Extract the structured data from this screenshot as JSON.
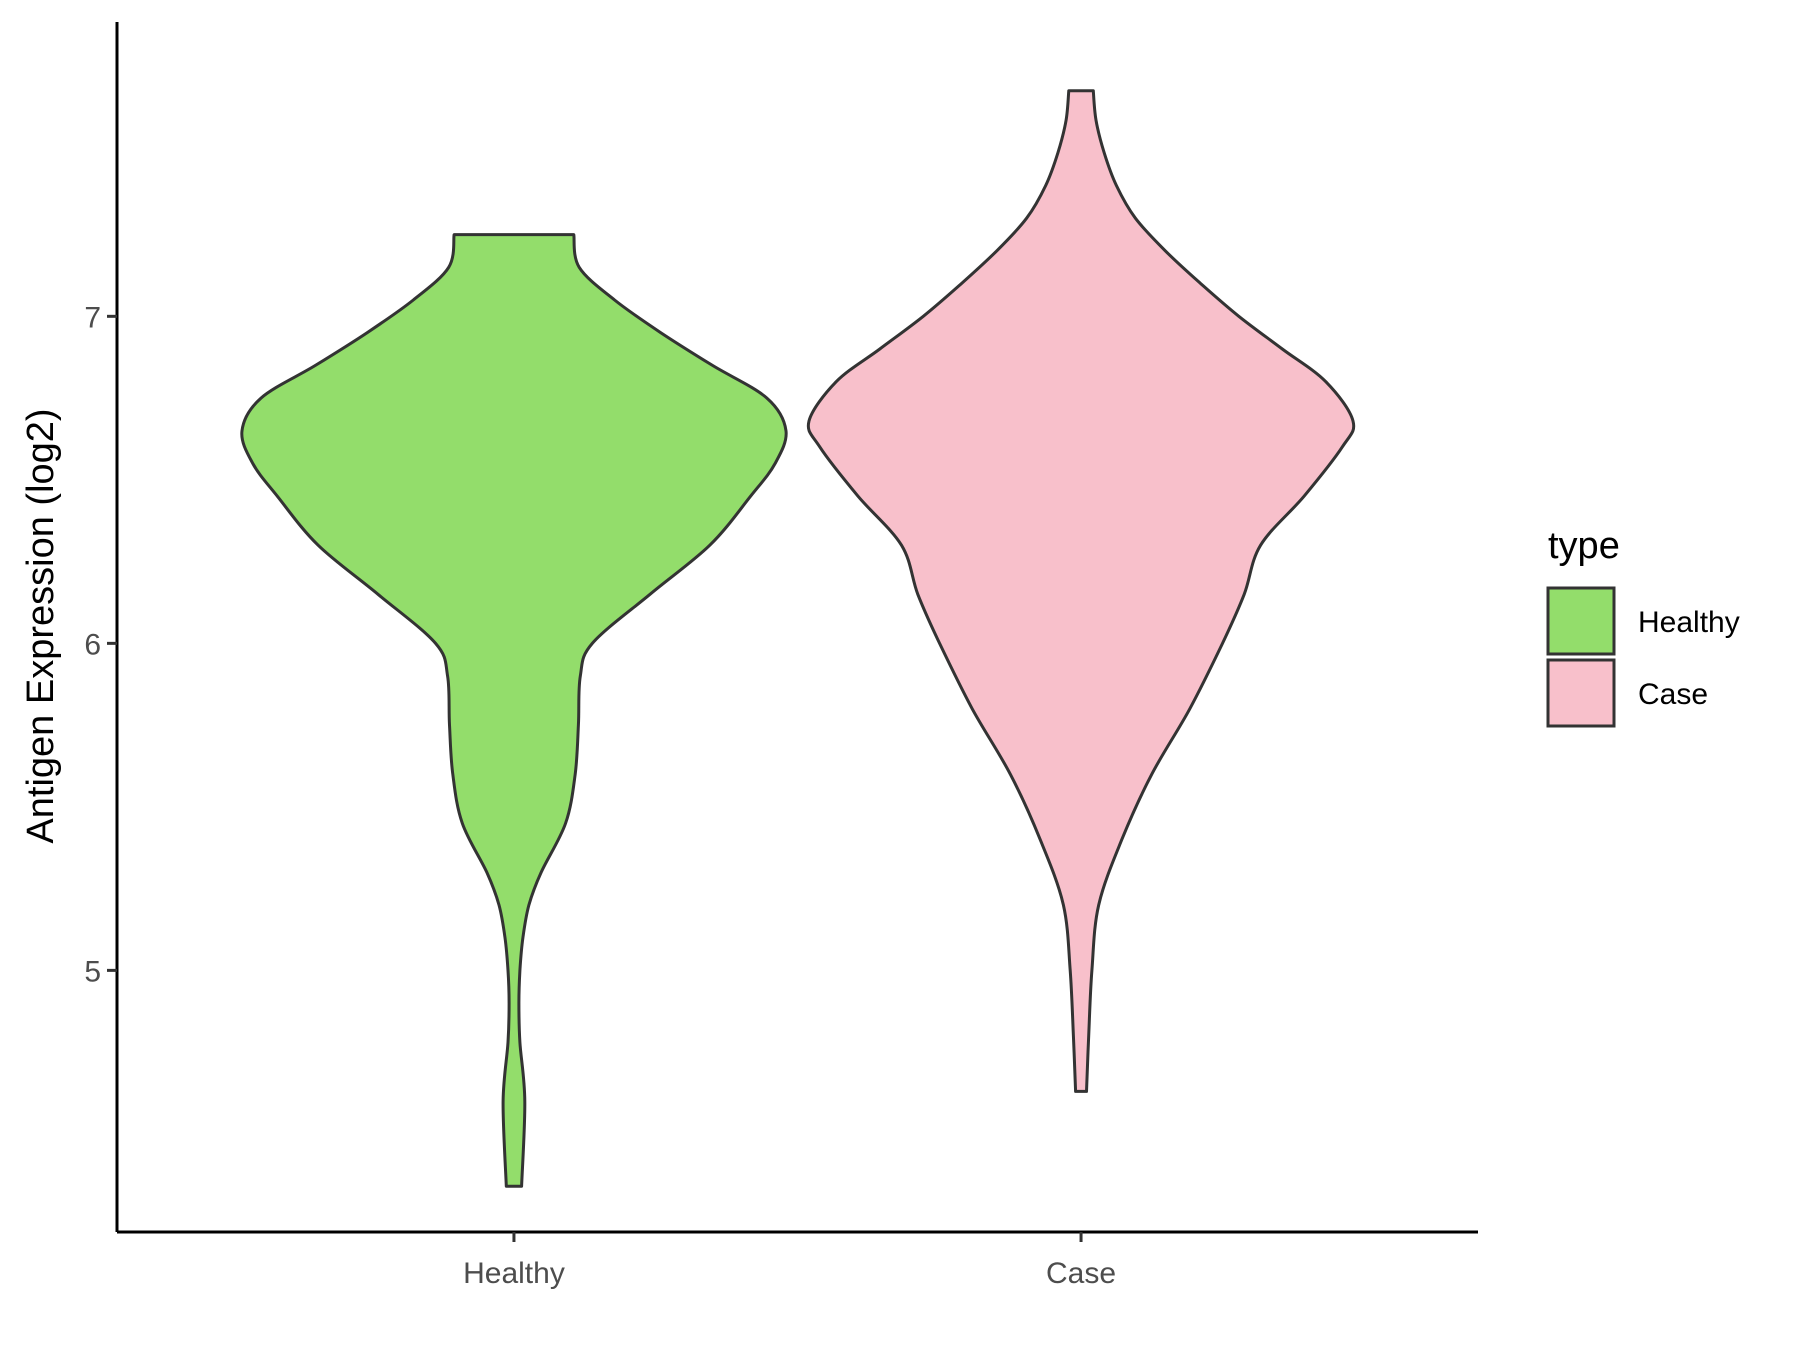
{
  "chart_data": {
    "type": "violin",
    "title": "",
    "xlabel": "",
    "ylabel": "Antigen Expression (log2)",
    "ylim": [
      4.2,
      7.9
    ],
    "yticks": [
      5,
      6,
      7
    ],
    "categories": [
      "Healthy",
      "Case"
    ],
    "legend": {
      "title": "type",
      "position": "right",
      "entries": [
        "Healthy",
        "Case"
      ]
    },
    "series": [
      {
        "name": "Healthy",
        "color": "#93DD6B",
        "min": 4.34,
        "max": 7.25,
        "density_profile": [
          [
            4.34,
            0.028
          ],
          [
            4.6,
            0.04
          ],
          [
            4.78,
            0.022
          ],
          [
            4.9,
            0.018
          ],
          [
            5.0,
            0.022
          ],
          [
            5.1,
            0.033
          ],
          [
            5.2,
            0.055
          ],
          [
            5.3,
            0.1
          ],
          [
            5.45,
            0.19
          ],
          [
            5.6,
            0.225
          ],
          [
            5.75,
            0.237
          ],
          [
            5.9,
            0.244
          ],
          [
            6.0,
            0.288
          ],
          [
            6.15,
            0.5
          ],
          [
            6.3,
            0.72
          ],
          [
            6.45,
            0.87
          ],
          [
            6.55,
            0.96
          ],
          [
            6.65,
            1.0
          ],
          [
            6.75,
            0.93
          ],
          [
            6.85,
            0.73
          ],
          [
            6.95,
            0.54
          ],
          [
            7.05,
            0.37
          ],
          [
            7.15,
            0.24
          ],
          [
            7.25,
            0.22
          ]
        ]
      },
      {
        "name": "Case",
        "color": "#F8C0CB",
        "min": 4.63,
        "max": 7.69,
        "density_profile": [
          [
            4.63,
            0.02
          ],
          [
            4.8,
            0.028
          ],
          [
            5.0,
            0.04
          ],
          [
            5.2,
            0.065
          ],
          [
            5.4,
            0.15
          ],
          [
            5.6,
            0.26
          ],
          [
            5.8,
            0.4
          ],
          [
            6.0,
            0.52
          ],
          [
            6.15,
            0.6
          ],
          [
            6.3,
            0.66
          ],
          [
            6.45,
            0.82
          ],
          [
            6.6,
            0.96
          ],
          [
            6.68,
            1.0
          ],
          [
            6.8,
            0.9
          ],
          [
            6.9,
            0.74
          ],
          [
            7.0,
            0.58
          ],
          [
            7.1,
            0.44
          ],
          [
            7.2,
            0.31
          ],
          [
            7.3,
            0.2
          ],
          [
            7.4,
            0.13
          ],
          [
            7.5,
            0.085
          ],
          [
            7.6,
            0.055
          ],
          [
            7.69,
            0.045
          ]
        ]
      }
    ]
  }
}
